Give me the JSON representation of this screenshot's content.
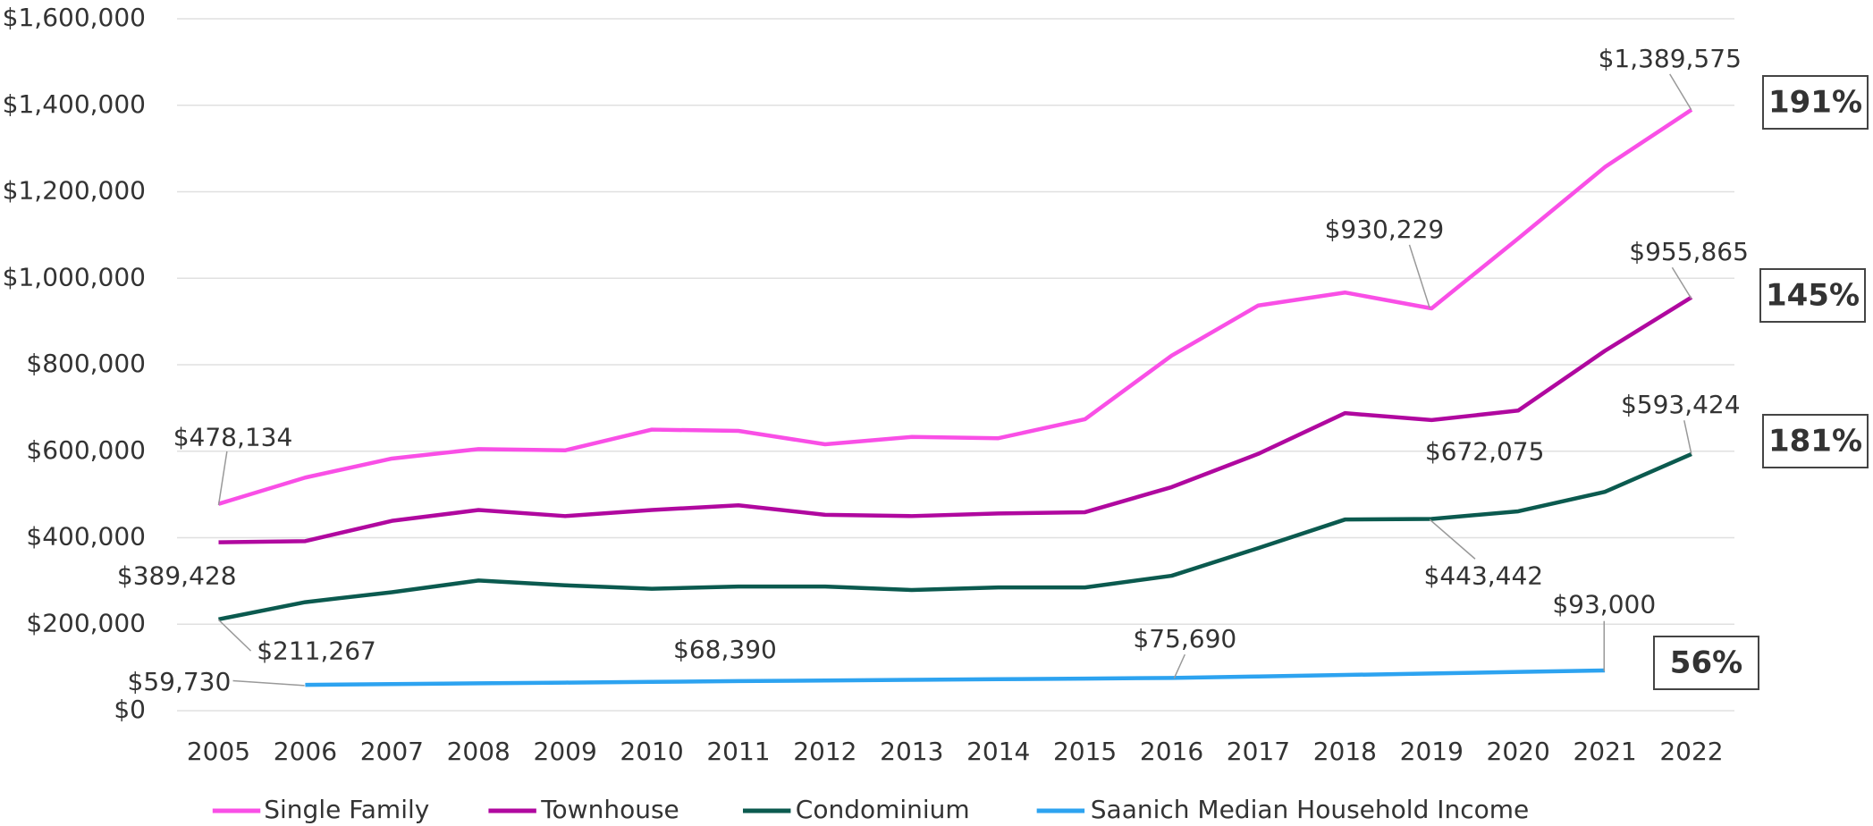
{
  "chart_data": {
    "type": "line",
    "categories": [
      "2005",
      "2006",
      "2007",
      "2008",
      "2009",
      "2010",
      "2011",
      "2012",
      "2013",
      "2014",
      "2015",
      "2016",
      "2017",
      "2018",
      "2019",
      "2020",
      "2021",
      "2022"
    ],
    "ylim": [
      0,
      1600000
    ],
    "yticks": [
      {
        "value": 0,
        "label": "$0"
      },
      {
        "value": 200000,
        "label": "$200,000"
      },
      {
        "value": 400000,
        "label": "$400,000"
      },
      {
        "value": 600000,
        "label": "$600,000"
      },
      {
        "value": 800000,
        "label": "$800,000"
      },
      {
        "value": 1000000,
        "label": "$1,000,000"
      },
      {
        "value": 1200000,
        "label": "$1,200,000"
      },
      {
        "value": 1400000,
        "label": "$1,400,000"
      },
      {
        "value": 1600000,
        "label": "$1,600,000"
      }
    ],
    "grid": true,
    "series": [
      {
        "name": "Single Family",
        "color": "#f94fe6",
        "change": "191%",
        "values": [
          478134,
          539000,
          583000,
          605000,
          602000,
          650000,
          647000,
          616000,
          633000,
          630000,
          674000,
          821000,
          937000,
          967000,
          930229,
          1092000,
          1257000,
          1389575
        ],
        "value_labels": [
          "$478,134",
          null,
          null,
          null,
          null,
          null,
          null,
          null,
          null,
          null,
          null,
          null,
          null,
          null,
          "$930,229",
          null,
          null,
          "$1,389,575"
        ]
      },
      {
        "name": "Townhouse",
        "color": "#b0089f",
        "change": "145%",
        "values": [
          389428,
          392000,
          439000,
          464000,
          450000,
          464000,
          475000,
          453000,
          450000,
          456000,
          459000,
          517000,
          594000,
          688000,
          672075,
          694000,
          832000,
          955865
        ],
        "value_labels": [
          "$389,428",
          null,
          null,
          null,
          null,
          null,
          null,
          null,
          null,
          null,
          null,
          null,
          null,
          null,
          "$672,075",
          null,
          null,
          "$955,865"
        ]
      },
      {
        "name": "Condominium",
        "color": "#0b5a4f",
        "change": "181%",
        "values": [
          211267,
          251000,
          274000,
          301000,
          290000,
          282000,
          287000,
          287000,
          279000,
          285000,
          285000,
          312000,
          376000,
          442000,
          443442,
          461000,
          506000,
          593424
        ],
        "value_labels": [
          "$211,267",
          null,
          null,
          null,
          null,
          null,
          null,
          null,
          null,
          null,
          null,
          null,
          null,
          null,
          "$443,442",
          null,
          null,
          "$593,424"
        ]
      },
      {
        "name": "Saanich Median Household Income",
        "color": "#2da3f0",
        "change": "56%",
        "values": [
          null,
          59730,
          61462,
          63194,
          64926,
          66658,
          68390,
          69850,
          71310,
          72770,
          74230,
          75690,
          79152,
          82614,
          86076,
          89538,
          93000,
          null
        ],
        "value_labels": [
          null,
          "$59,730",
          null,
          null,
          null,
          null,
          "$68,390",
          null,
          null,
          null,
          null,
          "$75,690",
          null,
          null,
          null,
          null,
          "$93,000",
          null
        ]
      }
    ]
  }
}
